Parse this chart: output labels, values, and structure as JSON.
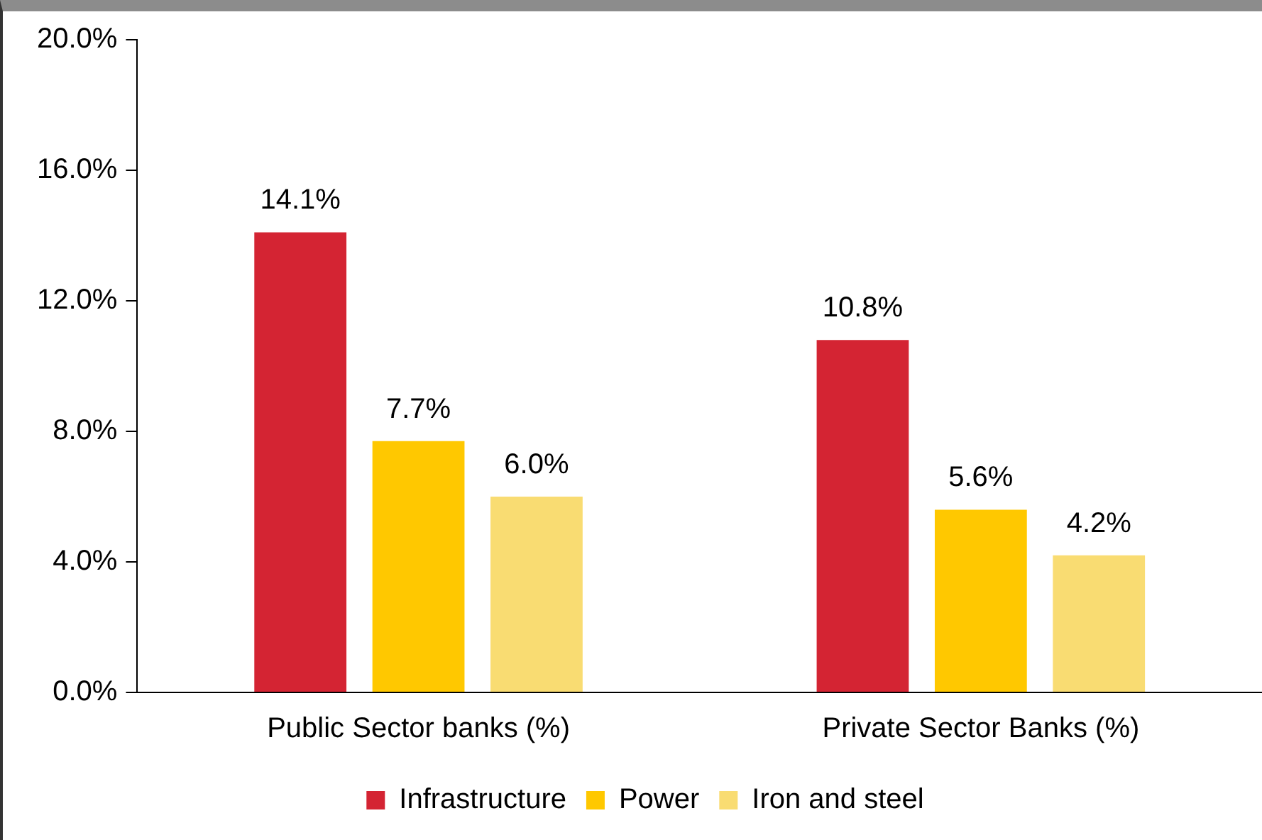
{
  "chart_data": {
    "type": "bar",
    "categories": [
      "Public Sector banks (%)",
      "Private Sector Banks (%)"
    ],
    "series": [
      {
        "name": "Infrastructure",
        "color": "#d42433",
        "values": [
          14.1,
          10.8
        ],
        "value_labels": [
          "14.1%",
          "10.8%"
        ]
      },
      {
        "name": "Power",
        "color": "#ffc800",
        "values": [
          7.7,
          5.6
        ],
        "value_labels": [
          "7.7%",
          "5.6%"
        ]
      },
      {
        "name": "Iron and steel",
        "color": "#f9dc72",
        "values": [
          6.0,
          4.2
        ],
        "value_labels": [
          "6.0%",
          "4.2%"
        ]
      }
    ],
    "ylim": [
      0,
      20
    ],
    "yticks": [
      {
        "value": 0,
        "label": "0.0%"
      },
      {
        "value": 4,
        "label": "4.0%"
      },
      {
        "value": 8,
        "label": "8.0%"
      },
      {
        "value": 12,
        "label": "12.0%"
      },
      {
        "value": 16,
        "label": "16.0%"
      },
      {
        "value": 20,
        "label": "20.0%"
      }
    ],
    "grid": false,
    "legend": "bottom"
  }
}
